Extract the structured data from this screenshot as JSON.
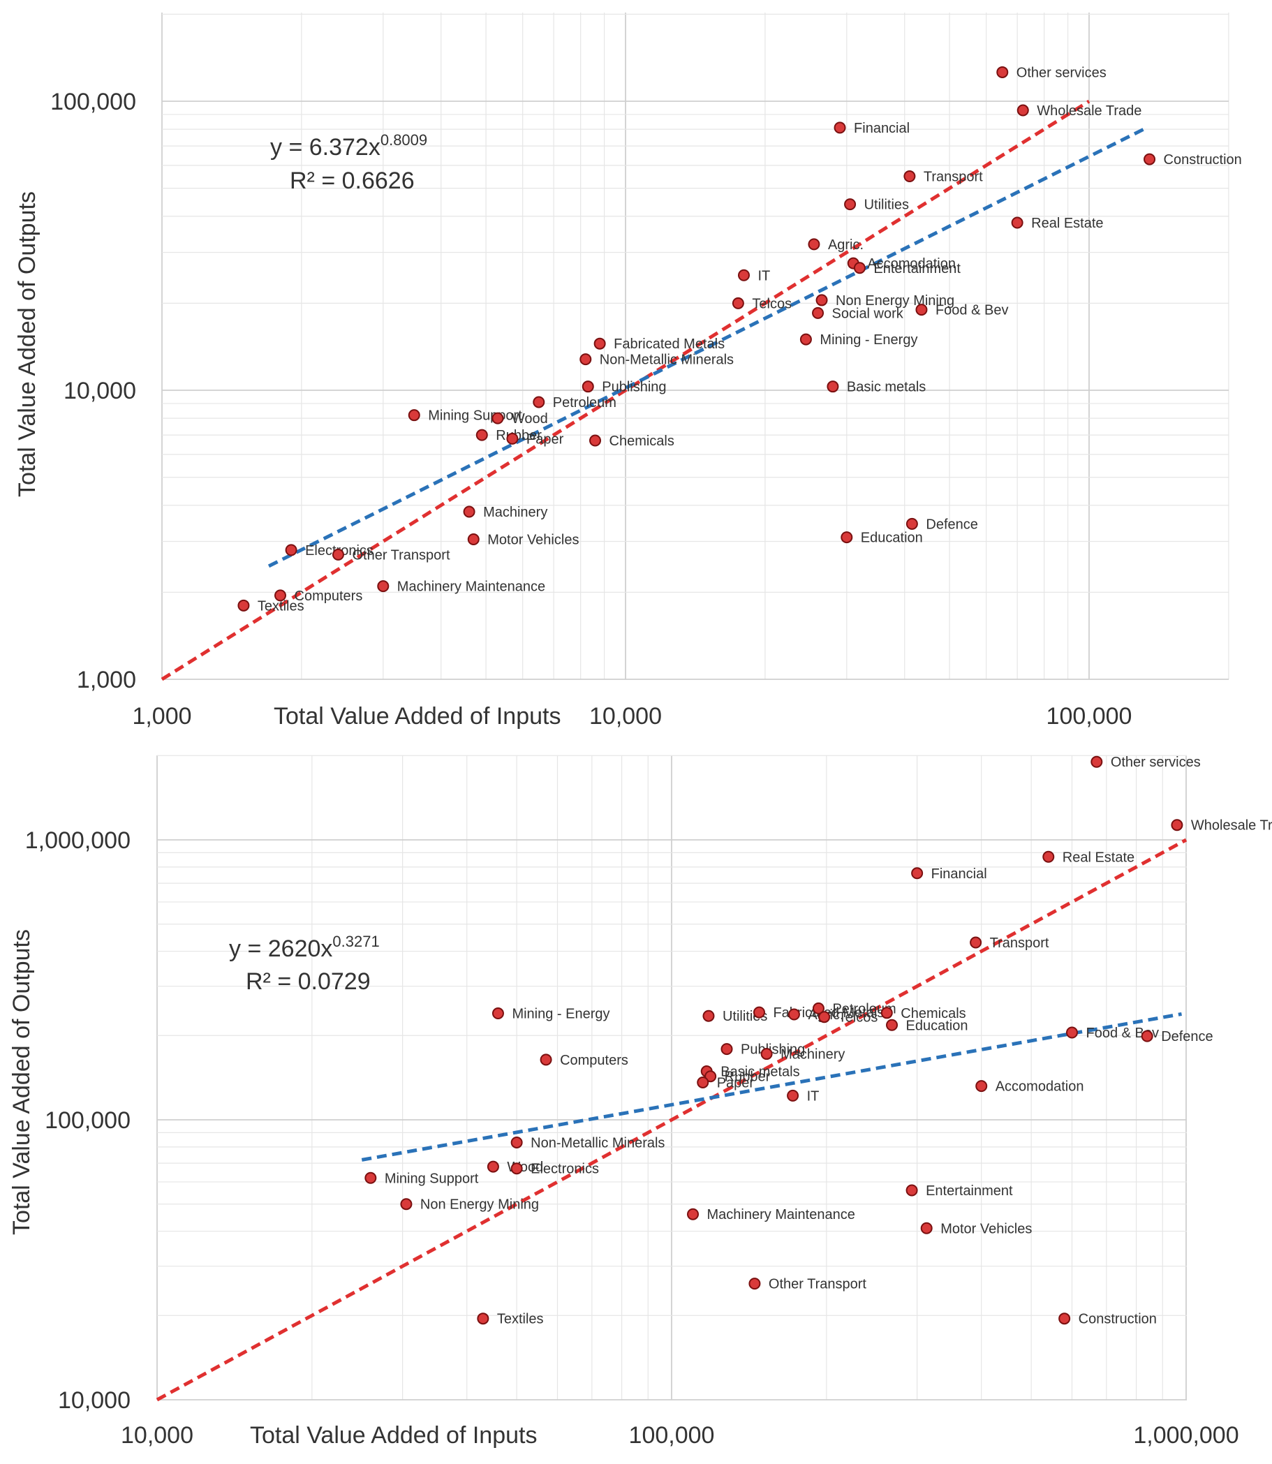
{
  "chart_data": [
    {
      "type": "scatter",
      "title": "",
      "xlabel": "Total Value Added of Inputs",
      "ylabel": "Total Value Added of Outputs",
      "xscale": "log",
      "yscale": "log",
      "xlim": [
        1000,
        200000
      ],
      "ylim": [
        1000,
        200000
      ],
      "grid": true,
      "x_ticks": [
        "1,000",
        "10,000",
        "100,000"
      ],
      "y_ticks": [
        "1,000",
        "10,000",
        "100,000"
      ],
      "equation": "y = 6.372x",
      "equation_exp": "0.8009",
      "r_squared": "R² = 0.6626",
      "colors": {
        "points": "#d93a3a",
        "identity_line": "#e03030",
        "trend_line": "#2a72b8"
      },
      "trendline": {
        "a": 6.372,
        "b": 0.8009,
        "x_range": [
          1700,
          132000
        ]
      },
      "identity_line": {
        "x_range": [
          1000,
          100000
        ]
      },
      "points": [
        {
          "label": "Other services",
          "x": 65000,
          "y": 126000
        },
        {
          "label": "Wholesale Trade",
          "x": 72000,
          "y": 93000
        },
        {
          "label": "Financial",
          "x": 29000,
          "y": 81000
        },
        {
          "label": "Construction",
          "x": 135000,
          "y": 63000
        },
        {
          "label": "Transport",
          "x": 41000,
          "y": 55000
        },
        {
          "label": "Utilities",
          "x": 30500,
          "y": 44000
        },
        {
          "label": "Real Estate",
          "x": 70000,
          "y": 38000
        },
        {
          "label": "Agric.",
          "x": 25500,
          "y": 32000
        },
        {
          "label": "Accomodation",
          "x": 31000,
          "y": 27500
        },
        {
          "label": "Entertainment",
          "x": 32000,
          "y": 26500
        },
        {
          "label": "IT",
          "x": 18000,
          "y": 25000
        },
        {
          "label": "Telcos",
          "x": 17500,
          "y": 20000
        },
        {
          "label": "Non Energy Mining",
          "x": 26500,
          "y": 20500
        },
        {
          "label": "Social work",
          "x": 26000,
          "y": 18500
        },
        {
          "label": "Food & Bev",
          "x": 43500,
          "y": 19000
        },
        {
          "label": "Mining - Energy",
          "x": 24500,
          "y": 15000
        },
        {
          "label": "Fabricated Metals",
          "x": 8800,
          "y": 14500
        },
        {
          "label": "Non-Metallic Minerals",
          "x": 8200,
          "y": 12800
        },
        {
          "label": "Publishing",
          "x": 8300,
          "y": 10300
        },
        {
          "label": "Basic metals",
          "x": 28000,
          "y": 10300
        },
        {
          "label": "Petroleum",
          "x": 6500,
          "y": 9100
        },
        {
          "label": "Mining Support",
          "x": 3500,
          "y": 8200
        },
        {
          "label": "Wood",
          "x": 5300,
          "y": 8000
        },
        {
          "label": "Rubber",
          "x": 4900,
          "y": 7000
        },
        {
          "label": "Paper",
          "x": 5700,
          "y": 6800
        },
        {
          "label": "Chemicals",
          "x": 8600,
          "y": 6700
        },
        {
          "label": "Machinery",
          "x": 4600,
          "y": 3800
        },
        {
          "label": "Motor Vehicles",
          "x": 4700,
          "y": 3050
        },
        {
          "label": "Defence",
          "x": 41500,
          "y": 3450
        },
        {
          "label": "Education",
          "x": 30000,
          "y": 3100
        },
        {
          "label": "Electronics",
          "x": 1900,
          "y": 2800
        },
        {
          "label": "Other Transport",
          "x": 2400,
          "y": 2700
        },
        {
          "label": "Machinery Maintenance",
          "x": 3000,
          "y": 2100
        },
        {
          "label": "Computers",
          "x": 1800,
          "y": 1950
        },
        {
          "label": "Textiles",
          "x": 1500,
          "y": 1800
        }
      ]
    },
    {
      "type": "scatter",
      "title": "",
      "xlabel": "Total Value Added of Inputs",
      "ylabel": "Total Value Added of Outputs",
      "xscale": "log",
      "yscale": "log",
      "xlim": [
        10000,
        1000000
      ],
      "ylim": [
        10000,
        2000000
      ],
      "grid": true,
      "x_ticks": [
        "10,000",
        "100,000",
        "1,000,000"
      ],
      "y_ticks": [
        "10,000",
        "100,000",
        "1,000,000"
      ],
      "equation": "y = 2620x",
      "equation_exp": "0.3271",
      "r_squared": "R² = 0.0729",
      "colors": {
        "points": "#d93a3a",
        "identity_line": "#e03030",
        "trend_line": "#2a72b8"
      },
      "trendline": {
        "a": 2620,
        "b": 0.3271,
        "x_range": [
          25000,
          980000
        ]
      },
      "identity_line": {
        "x_range": [
          10000,
          1000000
        ]
      },
      "points": [
        {
          "label": "Other services",
          "x": 670000,
          "y": 1900000
        },
        {
          "label": "Wholesale Trade",
          "x": 960000,
          "y": 1130000
        },
        {
          "label": "Real Estate",
          "x": 540000,
          "y": 870000
        },
        {
          "label": "Financial",
          "x": 300000,
          "y": 760000
        },
        {
          "label": "Transport",
          "x": 390000,
          "y": 430000
        },
        {
          "label": "Mining - Energy",
          "x": 46000,
          "y": 240000
        },
        {
          "label": "Utilities",
          "x": 118000,
          "y": 235000
        },
        {
          "label": "Fabricated Metals",
          "x": 148000,
          "y": 242000
        },
        {
          "label": "Agric.",
          "x": 173000,
          "y": 238000
        },
        {
          "label": "Petroleum",
          "x": 193000,
          "y": 250000
        },
        {
          "label": "Telcos",
          "x": 198000,
          "y": 233000
        },
        {
          "label": "Chemicals",
          "x": 262000,
          "y": 241000
        },
        {
          "label": "Education",
          "x": 268000,
          "y": 218000
        },
        {
          "label": "Food & Bev",
          "x": 600000,
          "y": 205000
        },
        {
          "label": "Defence",
          "x": 840000,
          "y": 199000
        },
        {
          "label": "Computers",
          "x": 57000,
          "y": 164000
        },
        {
          "label": "Publishing",
          "x": 128000,
          "y": 179000
        },
        {
          "label": "Machinery",
          "x": 153000,
          "y": 172000
        },
        {
          "label": "Basic metals",
          "x": 117000,
          "y": 149000
        },
        {
          "label": "Rubber",
          "x": 119000,
          "y": 143000
        },
        {
          "label": "Paper",
          "x": 115000,
          "y": 136000
        },
        {
          "label": "IT",
          "x": 172000,
          "y": 122000
        },
        {
          "label": "Accomodation",
          "x": 400000,
          "y": 132000
        },
        {
          "label": "Non-Metallic Minerals",
          "x": 50000,
          "y": 83000
        },
        {
          "label": "Wood",
          "x": 45000,
          "y": 68000
        },
        {
          "label": "Electronics",
          "x": 50000,
          "y": 67000
        },
        {
          "label": "Mining Support",
          "x": 26000,
          "y": 62000
        },
        {
          "label": "Non Energy Mining",
          "x": 30500,
          "y": 50000
        },
        {
          "label": "Entertainment",
          "x": 293000,
          "y": 56000
        },
        {
          "label": "Machinery Maintenance",
          "x": 110000,
          "y": 46000
        },
        {
          "label": "Motor Vehicles",
          "x": 313000,
          "y": 41000
        },
        {
          "label": "Other Transport",
          "x": 145000,
          "y": 26000
        },
        {
          "label": "Textiles",
          "x": 43000,
          "y": 19500
        },
        {
          "label": "Construction",
          "x": 580000,
          "y": 19500
        }
      ]
    }
  ]
}
